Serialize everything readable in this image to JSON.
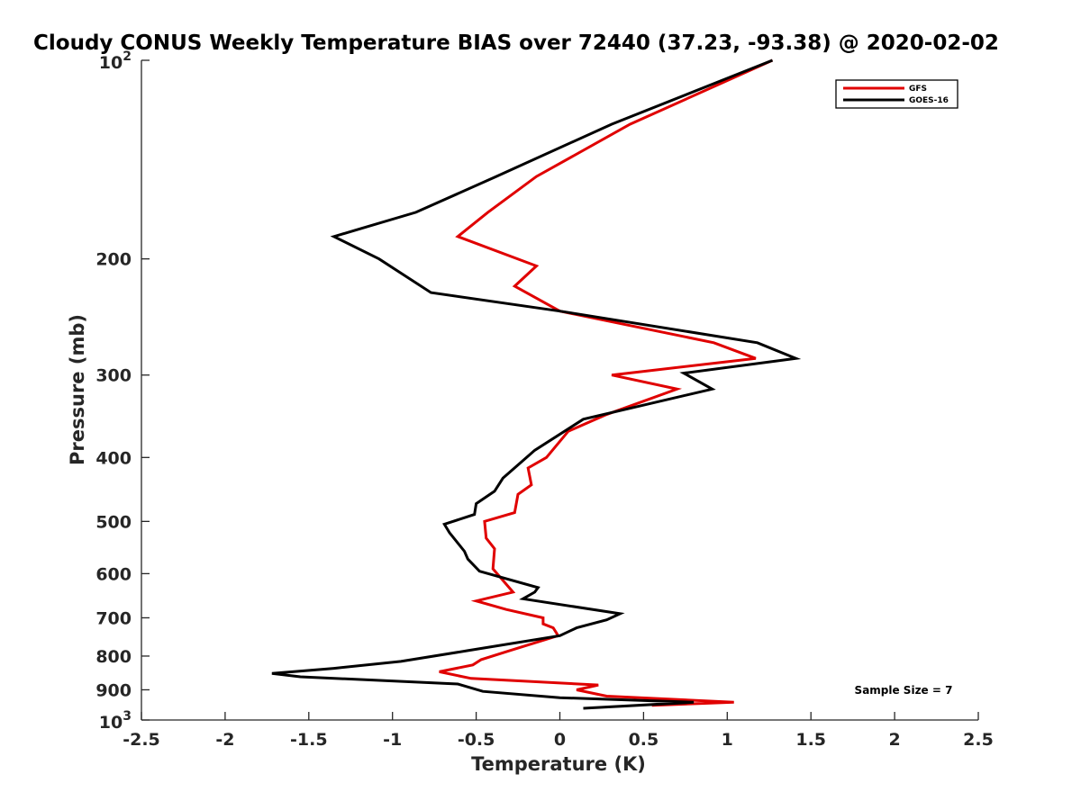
{
  "chart_data": {
    "type": "line",
    "title": "Cloudy CONUS Weekly Temperature BIAS over 72440 (37.23, -93.38) @ 2020-02-02",
    "xlabel": "Temperature (K)",
    "ylabel": "Pressure (mb)",
    "xlim": [
      -2.5,
      2.5
    ],
    "ylim": [
      100,
      1000
    ],
    "yscale": "log",
    "yreversed": true,
    "grid": false,
    "x_ticks": [
      "-2.5",
      "-2",
      "-1.5",
      "-1",
      "-0.5",
      "0",
      "0.5",
      "1",
      "1.5",
      "2",
      "2.5"
    ],
    "y_ticks": [
      {
        "value": 100,
        "base": "10",
        "exp": "2"
      },
      {
        "value": 200,
        "label": "200"
      },
      {
        "value": 300,
        "label": "300"
      },
      {
        "value": 400,
        "label": "400"
      },
      {
        "value": 500,
        "label": "500"
      },
      {
        "value": 600,
        "label": "600"
      },
      {
        "value": 700,
        "label": "700"
      },
      {
        "value": 800,
        "label": "800"
      },
      {
        "value": 900,
        "label": "900"
      },
      {
        "value": 1000,
        "base": "10",
        "exp": "3"
      }
    ],
    "legend": {
      "placement": "top-right"
    },
    "annotation": "Sample Size = 7",
    "series": [
      {
        "name": "GFS",
        "color": "#e00000",
        "points": [
          [
            1.27,
            100
          ],
          [
            0.42,
            125
          ],
          [
            -0.14,
            150
          ],
          [
            -0.43,
            170
          ],
          [
            -0.61,
            185
          ],
          [
            -0.14,
            205
          ],
          [
            -0.27,
            220
          ],
          [
            0.0,
            240
          ],
          [
            0.92,
            268
          ],
          [
            1.17,
            283
          ],
          [
            0.31,
            300
          ],
          [
            0.7,
            315
          ],
          [
            0.27,
            345
          ],
          [
            0.05,
            365
          ],
          [
            -0.08,
            400
          ],
          [
            -0.19,
            415
          ],
          [
            -0.17,
            440
          ],
          [
            -0.25,
            455
          ],
          [
            -0.27,
            485
          ],
          [
            -0.45,
            500
          ],
          [
            -0.44,
            530
          ],
          [
            -0.39,
            550
          ],
          [
            -0.4,
            590
          ],
          [
            -0.28,
            640
          ],
          [
            -0.5,
            660
          ],
          [
            -0.32,
            680
          ],
          [
            -0.1,
            700
          ],
          [
            -0.1,
            715
          ],
          [
            -0.04,
            725
          ],
          [
            -0.01,
            745
          ],
          [
            -0.3,
            785
          ],
          [
            -0.47,
            810
          ],
          [
            -0.52,
            825
          ],
          [
            -0.72,
            845
          ],
          [
            -0.53,
            865
          ],
          [
            0.23,
            885
          ],
          [
            0.1,
            900
          ],
          [
            0.28,
            920
          ],
          [
            1.04,
            940
          ],
          [
            0.55,
            950
          ]
        ]
      },
      {
        "name": "GOES-16",
        "color": "#000000",
        "points": [
          [
            1.27,
            100
          ],
          [
            0.31,
            125
          ],
          [
            -0.38,
            150
          ],
          [
            -0.86,
            170
          ],
          [
            -1.35,
            185
          ],
          [
            -1.08,
            200
          ],
          [
            -0.77,
            225
          ],
          [
            0.0,
            240
          ],
          [
            1.18,
            268
          ],
          [
            1.41,
            283
          ],
          [
            0.74,
            298
          ],
          [
            0.91,
            315
          ],
          [
            0.14,
            350
          ],
          [
            -0.15,
            390
          ],
          [
            -0.34,
            430
          ],
          [
            -0.39,
            450
          ],
          [
            -0.5,
            470
          ],
          [
            -0.51,
            488
          ],
          [
            -0.69,
            505
          ],
          [
            -0.66,
            520
          ],
          [
            -0.57,
            555
          ],
          [
            -0.55,
            570
          ],
          [
            -0.48,
            595
          ],
          [
            -0.13,
            630
          ],
          [
            -0.15,
            640
          ],
          [
            -0.22,
            655
          ],
          [
            0.36,
            690
          ],
          [
            0.28,
            705
          ],
          [
            0.1,
            725
          ],
          [
            0.0,
            745
          ],
          [
            -0.55,
            785
          ],
          [
            -0.95,
            815
          ],
          [
            -1.35,
            835
          ],
          [
            -1.72,
            850
          ],
          [
            -1.55,
            860
          ],
          [
            -0.61,
            882
          ],
          [
            -0.46,
            905
          ],
          [
            0.0,
            925
          ],
          [
            0.8,
            940
          ],
          [
            0.14,
            960
          ]
        ]
      }
    ]
  }
}
